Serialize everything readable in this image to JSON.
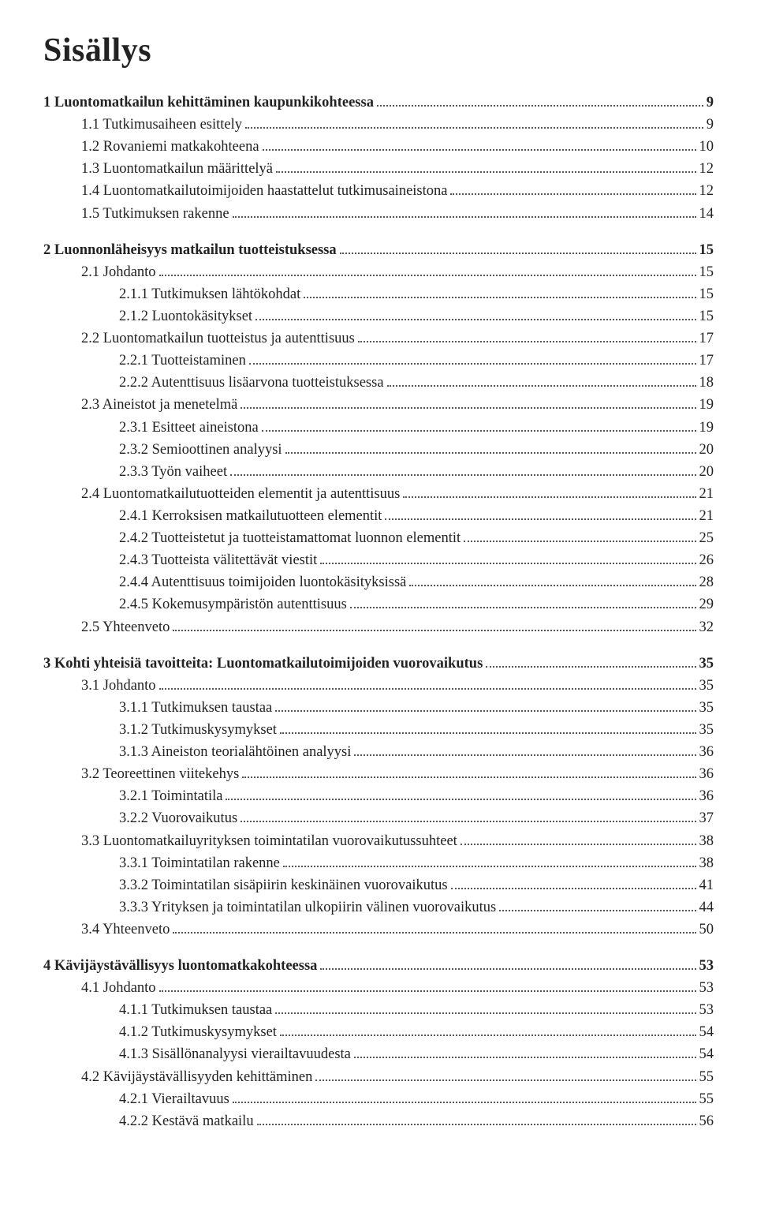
{
  "title": "Sisällys",
  "entries": [
    {
      "label": "1 Luontomatkailun kehittäminen kaupunkikohteessa",
      "page": "9",
      "bold": true,
      "indent": 0,
      "gap_before": false
    },
    {
      "label": "1.1 Tutkimusaiheen esittely",
      "page": "9",
      "bold": false,
      "indent": 1,
      "gap_before": false
    },
    {
      "label": "1.2 Rovaniemi matkakohteena",
      "page": "10",
      "bold": false,
      "indent": 1,
      "gap_before": false
    },
    {
      "label": "1.3 Luontomatkailun määrittelyä",
      "page": "12",
      "bold": false,
      "indent": 1,
      "gap_before": false
    },
    {
      "label": "1.4 Luontomatkailutoimijoiden haastattelut tutkimusaineistona",
      "page": "12",
      "bold": false,
      "indent": 1,
      "gap_before": false
    },
    {
      "label": "1.5 Tutkimuksen rakenne",
      "page": "14",
      "bold": false,
      "indent": 1,
      "gap_before": false
    },
    {
      "label": "2 Luonnonläheisyys matkailun tuotteistuksessa",
      "page": "15",
      "bold": true,
      "indent": 0,
      "gap_before": true
    },
    {
      "label": "2.1 Johdanto",
      "page": "15",
      "bold": false,
      "indent": 1,
      "gap_before": false
    },
    {
      "label": "2.1.1 Tutkimuksen lähtökohdat",
      "page": "15",
      "bold": false,
      "indent": 2,
      "gap_before": false
    },
    {
      "label": "2.1.2 Luontokäsitykset",
      "page": "15",
      "bold": false,
      "indent": 2,
      "gap_before": false
    },
    {
      "label": "2.2 Luontomatkailun tuotteistus ja autenttisuus",
      "page": "17",
      "bold": false,
      "indent": 1,
      "gap_before": false
    },
    {
      "label": "2.2.1 Tuotteistaminen",
      "page": "17",
      "bold": false,
      "indent": 2,
      "gap_before": false
    },
    {
      "label": "2.2.2 Autenttisuus lisäarvona tuotteistuksessa",
      "page": "18",
      "bold": false,
      "indent": 2,
      "gap_before": false
    },
    {
      "label": "2.3 Aineistot ja menetelmä",
      "page": "19",
      "bold": false,
      "indent": 1,
      "gap_before": false
    },
    {
      "label": "2.3.1 Esitteet aineistona",
      "page": "19",
      "bold": false,
      "indent": 2,
      "gap_before": false
    },
    {
      "label": "2.3.2 Semioottinen analyysi",
      "page": "20",
      "bold": false,
      "indent": 2,
      "gap_before": false
    },
    {
      "label": "2.3.3 Työn vaiheet",
      "page": "20",
      "bold": false,
      "indent": 2,
      "gap_before": false
    },
    {
      "label": "2.4 Luontomatkailutuotteiden elementit ja autenttisuus",
      "page": "21",
      "bold": false,
      "indent": 1,
      "gap_before": false
    },
    {
      "label": "2.4.1 Kerroksisen matkailutuotteen elementit",
      "page": "21",
      "bold": false,
      "indent": 2,
      "gap_before": false
    },
    {
      "label": "2.4.2 Tuotteistetut ja tuotteistamattomat luonnon elementit",
      "page": "25",
      "bold": false,
      "indent": 2,
      "gap_before": false
    },
    {
      "label": "2.4.3 Tuotteista välitettävät viestit",
      "page": "26",
      "bold": false,
      "indent": 2,
      "gap_before": false
    },
    {
      "label": "2.4.4 Autenttisuus toimijoiden luontokäsityksissä",
      "page": "28",
      "bold": false,
      "indent": 2,
      "gap_before": false
    },
    {
      "label": "2.4.5 Kokemusympäristön autenttisuus",
      "page": "29",
      "bold": false,
      "indent": 2,
      "gap_before": false
    },
    {
      "label": "2.5 Yhteenveto",
      "page": "32",
      "bold": false,
      "indent": 1,
      "gap_before": false
    },
    {
      "label": "3 Kohti yhteisiä tavoitteita: Luontomatkailutoimijoiden vuorovaikutus",
      "page": "35",
      "bold": true,
      "indent": 0,
      "gap_before": true
    },
    {
      "label": "3.1 Johdanto",
      "page": "35",
      "bold": false,
      "indent": 1,
      "gap_before": false
    },
    {
      "label": "3.1.1 Tutkimuksen taustaa",
      "page": "35",
      "bold": false,
      "indent": 2,
      "gap_before": false
    },
    {
      "label": "3.1.2 Tutkimuskysymykset",
      "page": "35",
      "bold": false,
      "indent": 2,
      "gap_before": false
    },
    {
      "label": "3.1.3 Aineiston teorialähtöinen analyysi",
      "page": "36",
      "bold": false,
      "indent": 2,
      "gap_before": false
    },
    {
      "label": "3.2 Teoreettinen viitekehys",
      "page": "36",
      "bold": false,
      "indent": 1,
      "gap_before": false
    },
    {
      "label": "3.2.1 Toimintatila",
      "page": "36",
      "bold": false,
      "indent": 2,
      "gap_before": false
    },
    {
      "label": "3.2.2 Vuorovaikutus",
      "page": "37",
      "bold": false,
      "indent": 2,
      "gap_before": false
    },
    {
      "label": "3.3 Luontomatkailuyrityksen toimintatilan vuorovaikutussuhteet",
      "page": "38",
      "bold": false,
      "indent": 1,
      "gap_before": false
    },
    {
      "label": "3.3.1 Toimintatilan rakenne",
      "page": "38",
      "bold": false,
      "indent": 2,
      "gap_before": false
    },
    {
      "label": "3.3.2 Toimintatilan sisäpiirin keskinäinen vuorovaikutus",
      "page": "41",
      "bold": false,
      "indent": 2,
      "gap_before": false
    },
    {
      "label": "3.3.3 Yrityksen ja toimintatilan ulkopiirin välinen vuorovaikutus",
      "page": "44",
      "bold": false,
      "indent": 2,
      "gap_before": false
    },
    {
      "label": "3.4 Yhteenveto",
      "page": "50",
      "bold": false,
      "indent": 1,
      "gap_before": false
    },
    {
      "label": "4 Kävijäystävällisyys luontomatkakohteessa",
      "page": "53",
      "bold": true,
      "indent": 0,
      "gap_before": true
    },
    {
      "label": "4.1 Johdanto",
      "page": "53",
      "bold": false,
      "indent": 1,
      "gap_before": false
    },
    {
      "label": "4.1.1 Tutkimuksen taustaa",
      "page": "53",
      "bold": false,
      "indent": 2,
      "gap_before": false
    },
    {
      "label": "4.1.2 Tutkimuskysymykset",
      "page": "54",
      "bold": false,
      "indent": 2,
      "gap_before": false
    },
    {
      "label": "4.1.3 Sisällönanalyysi vierailtavuudesta",
      "page": "54",
      "bold": false,
      "indent": 2,
      "gap_before": false
    },
    {
      "label": "4.2 Kävijäystävällisyyden kehittäminen",
      "page": "55",
      "bold": false,
      "indent": 1,
      "gap_before": false
    },
    {
      "label": "4.2.1 Vierailtavuus",
      "page": "55",
      "bold": false,
      "indent": 2,
      "gap_before": false
    },
    {
      "label": "4.2.2 Kestävä matkailu",
      "page": "56",
      "bold": false,
      "indent": 2,
      "gap_before": false
    }
  ]
}
